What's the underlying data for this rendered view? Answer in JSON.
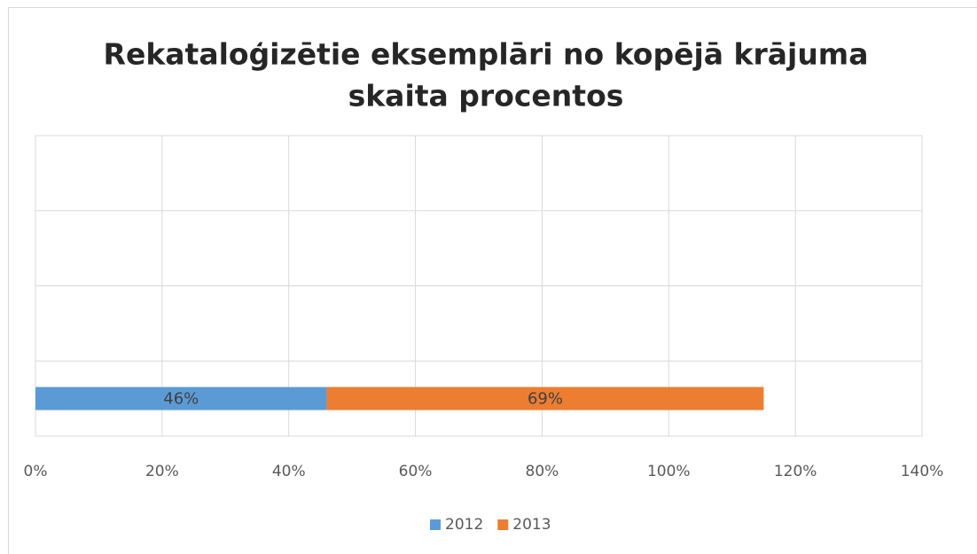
{
  "chart_data": {
    "type": "stacked-bar-horizontal",
    "title": [
      "Rekataloģizētie eksemplāri no kopējā krājuma",
      "skaita procentos"
    ],
    "categories": [
      null,
      null,
      null,
      null
    ],
    "series": [
      {
        "name": "2012",
        "color": "#5b9bd5",
        "values": [
          46,
          null,
          null,
          null
        ],
        "value_labels": [
          "46%",
          null,
          null,
          null
        ]
      },
      {
        "name": "2013",
        "color": "#ed7d31",
        "values": [
          69,
          null,
          null,
          null
        ],
        "value_labels": [
          "69%",
          null,
          null,
          null
        ]
      }
    ],
    "xlim": [
      0,
      140
    ],
    "xticks": [
      {
        "value": 0,
        "label": "0%"
      },
      {
        "value": 20,
        "label": "20%"
      },
      {
        "value": 40,
        "label": "40%"
      },
      {
        "value": 60,
        "label": "60%"
      },
      {
        "value": 80,
        "label": "80%"
      },
      {
        "value": 100,
        "label": "100%"
      },
      {
        "value": 120,
        "label": "120%"
      },
      {
        "value": 140,
        "label": "140%"
      }
    ],
    "grid": true,
    "legend": "bottom"
  }
}
